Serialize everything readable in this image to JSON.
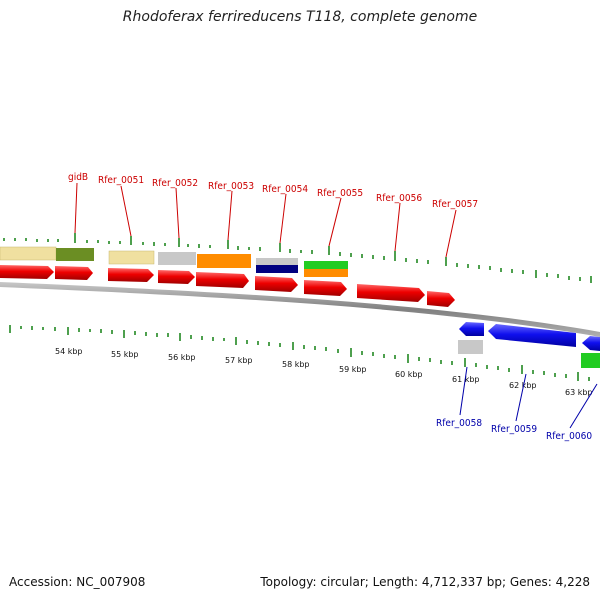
{
  "title": "Rhodoferax ferrireducens T118, complete genome",
  "accession": "Accession: NC_007908",
  "topology": "Topology: circular; Length: 4,712,337 bp; Genes: 4,228",
  "upper_gene_labels": [
    "gidB",
    "Rfer_0051",
    "Rfer_0052",
    "Rfer_0053",
    "Rfer_0054",
    "Rfer_0055",
    "Rfer_0056",
    "Rfer_0057"
  ],
  "lower_gene_labels": [
    "Rfer_0058",
    "Rfer_0059",
    "Rfer_0060"
  ],
  "kbp_labels": [
    "54 kbp",
    "55 kbp",
    "56 kbp",
    "57 kbp",
    "58 kbp",
    "59 kbp",
    "60 kbp",
    "61 kbp",
    "62 kbp",
    "63 kbp"
  ],
  "colors": {
    "forward_gene": "#ee0000",
    "reverse_gene": "#0000ee",
    "forward_label": "#cc0000",
    "reverse_label": "#0000aa",
    "tick": "#228822",
    "backbone": "#888888",
    "cog_khaki": "#f0e0a0",
    "cog_olive": "#6b8e23",
    "cog_gray": "#c8c8c8",
    "cog_orange": "#ff8c00",
    "cog_navy": "#000080",
    "cog_green": "#22cc22"
  }
}
